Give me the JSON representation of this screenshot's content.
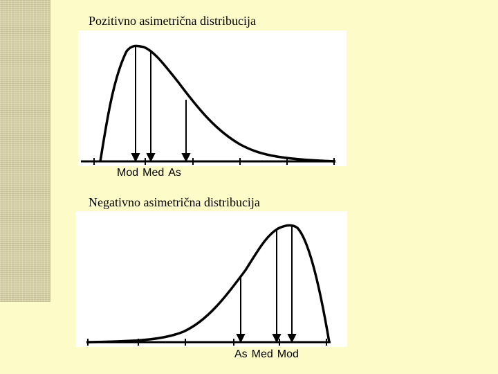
{
  "positive": {
    "title": "Pozitivno asimetrična distribucija",
    "labels": [
      "Mod",
      "Med",
      "As"
    ]
  },
  "negative": {
    "title": "Negativno asimetrična distribucija",
    "labels": [
      "As",
      "Med",
      "Mod"
    ]
  },
  "colors": {
    "background": "#fdfbc8",
    "panel": "#ffffff",
    "curve": "#000000"
  }
}
